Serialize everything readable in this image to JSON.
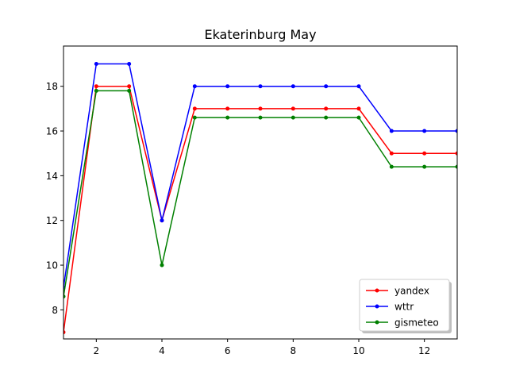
{
  "chart_data": {
    "type": "line",
    "title": "Ekaterinburg May",
    "xlabel": "",
    "ylabel": "",
    "xlim": [
      1,
      13
    ],
    "ylim": [
      6.7,
      19.8
    ],
    "x_ticks": [
      2,
      4,
      6,
      8,
      10,
      12
    ],
    "y_ticks": [
      8,
      10,
      12,
      14,
      16,
      18
    ],
    "grid": false,
    "legend_position": "lower-right",
    "x": [
      1,
      2,
      3,
      4,
      5,
      6,
      7,
      8,
      9,
      10,
      11,
      12,
      13
    ],
    "series": [
      {
        "name": "yandex",
        "color": "#ff0000",
        "values": [
          7,
          18,
          18,
          12,
          17,
          17,
          17,
          17,
          17,
          17,
          15,
          15,
          15
        ]
      },
      {
        "name": "wttr",
        "color": "#0000ff",
        "values": [
          9,
          19,
          19,
          12,
          18,
          18,
          18,
          18,
          18,
          18,
          16,
          16,
          16
        ]
      },
      {
        "name": "gismeteo",
        "color": "#008000",
        "values": [
          8.6,
          17.8,
          17.8,
          10,
          16.6,
          16.6,
          16.6,
          16.6,
          16.6,
          16.6,
          14.4,
          14.4,
          14.4
        ]
      }
    ]
  }
}
